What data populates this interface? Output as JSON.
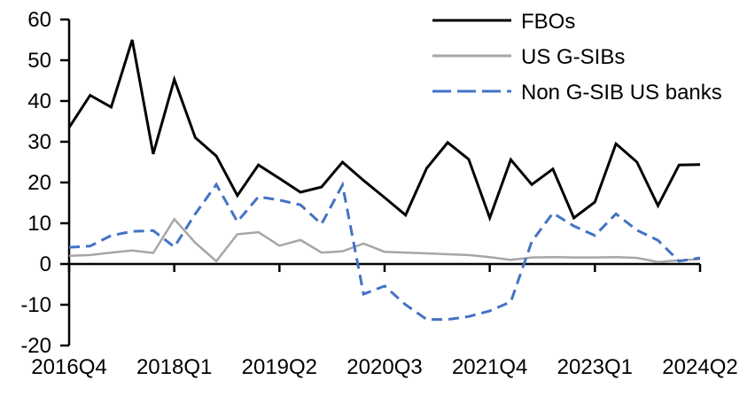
{
  "chart_data": {
    "type": "line",
    "title": "",
    "xlabel": "",
    "ylabel": "",
    "grid": false,
    "legend_position": "top-right",
    "axis_color": "#000000",
    "y_range": [
      -20,
      60
    ],
    "y_ticks": [
      60,
      50,
      40,
      30,
      20,
      10,
      0,
      -10,
      -20
    ],
    "x_categories": [
      "2016Q4",
      "2017Q1",
      "2017Q2",
      "2017Q3",
      "2017Q4",
      "2018Q1",
      "2018Q2",
      "2018Q3",
      "2018Q4",
      "2019Q1",
      "2019Q2",
      "2019Q3",
      "2019Q4",
      "2020Q1",
      "2020Q2",
      "2020Q3",
      "2020Q4",
      "2021Q1",
      "2021Q2",
      "2021Q3",
      "2021Q4",
      "2022Q1",
      "2022Q2",
      "2022Q3",
      "2022Q4",
      "2023Q1",
      "2023Q2",
      "2023Q3",
      "2023Q4",
      "2024Q1",
      "2024Q2"
    ],
    "x_tick_labels": [
      "2016Q4",
      "2018Q1",
      "2019Q2",
      "2020Q3",
      "2021Q4",
      "2023Q1",
      "2024Q2"
    ],
    "x_tick_indices": [
      0,
      5,
      10,
      15,
      20,
      25,
      30
    ],
    "series": [
      {
        "name": "FBOs",
        "color": "#000000",
        "style": "solid",
        "values": [
          33.5,
          41.4,
          38.5,
          55,
          27,
          45.3,
          31,
          26.5,
          16.8,
          24.3,
          21,
          17.6,
          18.9,
          25,
          20.5,
          16.3,
          12,
          23.5,
          29.8,
          25.7,
          11.3,
          25.6,
          19.5,
          23.3,
          11.3,
          15.2,
          29.5,
          25,
          14.3,
          24.3,
          24.4
        ]
      },
      {
        "name": "US G-SIBs",
        "color": "#A6A6A6",
        "style": "solid",
        "values": [
          2,
          2.2,
          2.8,
          3.3,
          2.7,
          11,
          5.2,
          0.7,
          7.3,
          7.8,
          4.5,
          5.9,
          2.8,
          3.1,
          5,
          3,
          2.8,
          2.6,
          2.4,
          2.2,
          1.7,
          1,
          1.6,
          1.7,
          1.6,
          1.6,
          1.7,
          1.5,
          0.5,
          0.9,
          1.2
        ]
      },
      {
        "name": "Non G-SIB US banks",
        "color": "#4472C4",
        "style": "dashed",
        "values": [
          4.1,
          4.4,
          7,
          8,
          8.2,
          4.2,
          12.3,
          19.5,
          10.4,
          16.5,
          15.7,
          14.5,
          9.8,
          19.4,
          -7.4,
          -5.4,
          -10,
          -13.6,
          -13.6,
          -12.9,
          -11.5,
          -9.3,
          5.5,
          12.5,
          9.3,
          7,
          12.3,
          8.3,
          5.8,
          0.7,
          1.5
        ]
      }
    ]
  }
}
